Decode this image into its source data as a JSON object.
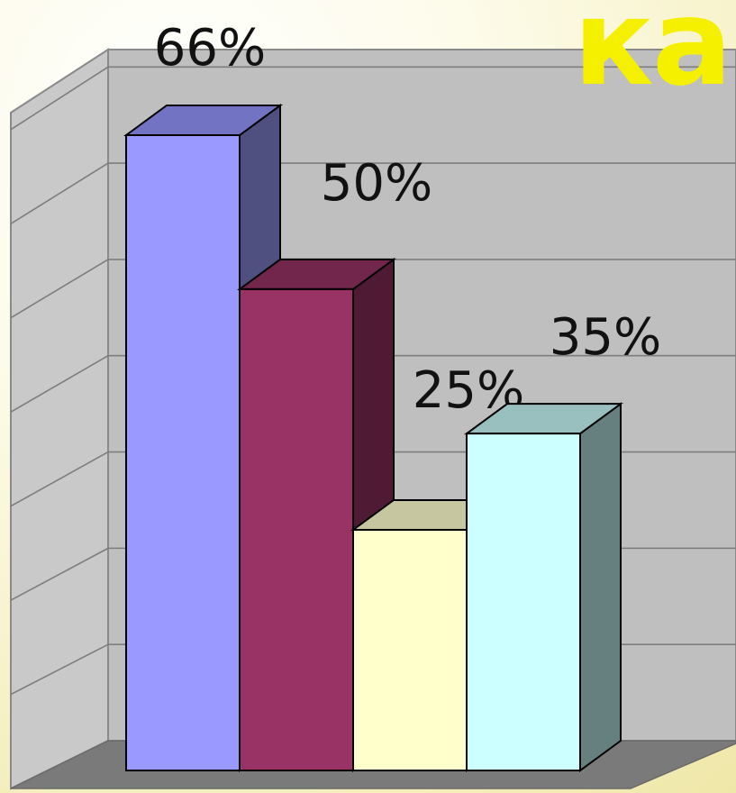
{
  "corner_text": "ка",
  "colors": {
    "corner_text": "#f5f000",
    "back_wall": "#bfbfbf",
    "side_wall": "#c9c9c9",
    "floor": "#7a7a7a",
    "gridline": "#7d7d7d",
    "label_text": "#111111"
  },
  "chart_data": {
    "type": "bar",
    "style": "3d-columns",
    "title": "",
    "xlabel": "",
    "ylabel": "",
    "ylim": [
      0,
      70
    ],
    "grid": true,
    "legend": "none",
    "categories": [
      "",
      "",
      "",
      ""
    ],
    "values": [
      66,
      50,
      25,
      35
    ],
    "data_labels": [
      "66%",
      "50%",
      "25%",
      "35%"
    ],
    "bar_colors": [
      {
        "front": "#9999ff",
        "top": "#7373c4",
        "side": "#4f4f80"
      },
      {
        "front": "#993366",
        "top": "#73264c",
        "side": "#4f1a33"
      },
      {
        "front": "#ffffcc",
        "top": "#c6c6a0",
        "side": "#9f9f80"
      },
      {
        "front": "#ccffff",
        "top": "#99bfbf",
        "side": "#668080"
      }
    ]
  }
}
